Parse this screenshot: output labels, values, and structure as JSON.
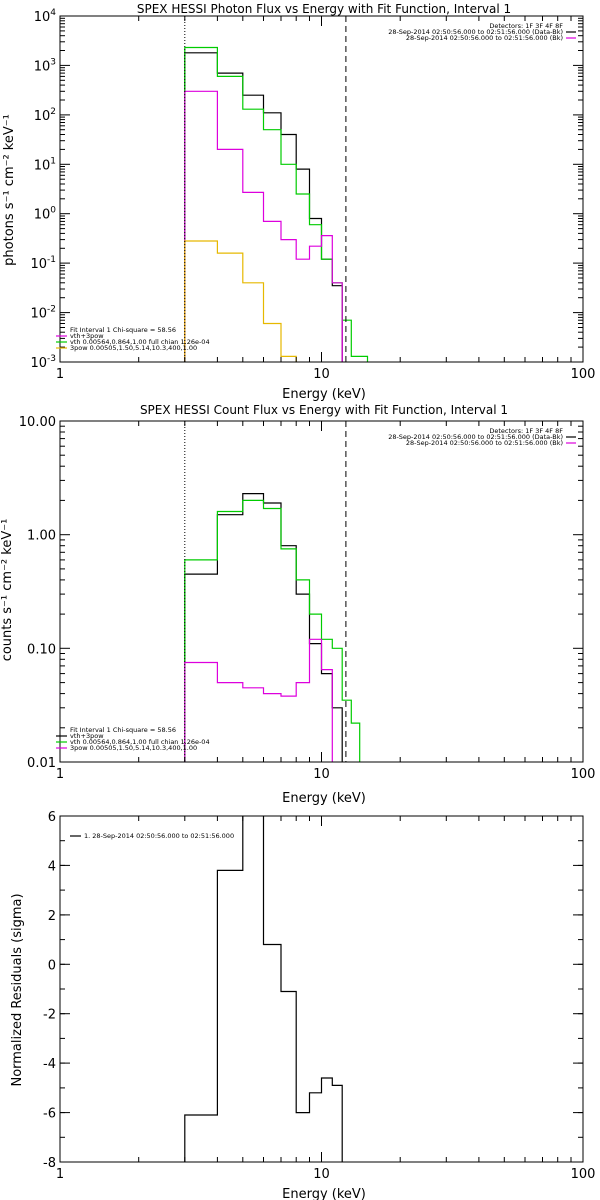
{
  "chart_data": [
    {
      "type": "line",
      "title": "SPEX HESSI Photon Flux vs Energy with Fit Function, Interval 1",
      "xlabel": "Energy (keV)",
      "ylabel": "photons s⁻¹ cm⁻² keV⁻¹",
      "x_scale": "log",
      "y_scale": "log",
      "xlim": [
        1,
        100
      ],
      "ylim": [
        0.001,
        10000
      ],
      "x_ticks": [
        {
          "v": 1,
          "label": "1"
        },
        {
          "v": 10,
          "label": "10"
        },
        {
          "v": 100,
          "label": "100"
        }
      ],
      "y_ticks": [
        {
          "v": 0.001,
          "base": "10",
          "exp": "-3"
        },
        {
          "v": 0.01,
          "base": "10",
          "exp": "-2"
        },
        {
          "v": 0.1,
          "base": "10",
          "exp": "-1"
        },
        {
          "v": 1,
          "base": "10",
          "exp": "0"
        },
        {
          "v": 10,
          "base": "10",
          "exp": "1"
        },
        {
          "v": 100,
          "base": "10",
          "exp": "2"
        },
        {
          "v": 1000,
          "base": "10",
          "exp": "3"
        },
        {
          "v": 10000,
          "base": "10",
          "exp": "4"
        }
      ],
      "vlines": [
        {
          "x": 3.0,
          "style": "dotted"
        },
        {
          "x": 12.4,
          "style": "dashed"
        }
      ],
      "legend_top_right": [
        {
          "text": "Detectors: 1F 3F 4F 8F",
          "color": ""
        },
        {
          "text": "28-Sep-2014 02:50:56.000 to 02:51:56.000 (Data-Bk)",
          "color": "#000000"
        },
        {
          "text": "28-Sep-2014 02:50:56.000 to 02:51:56.000 (Bk)",
          "color": "#dd00dd"
        }
      ],
      "legend_bottom_left": [
        {
          "text": "Fit Interval 1   Chi-square = 58.56",
          "color": ""
        },
        {
          "text": "vth+3pow",
          "color": "#dd00dd"
        },
        {
          "text": "vth 0.00564,0.864,1.00  full chian 1.26e-04",
          "color": "#00cc00"
        },
        {
          "text": "3pow 0.00505,1.50,5.14,10.3,400,1.00",
          "color": "#e6b800"
        }
      ],
      "series": [
        {
          "color": "#000000",
          "edges": [
            3.0,
            4.0,
            5.0,
            6.0,
            7.0,
            8.0,
            9.0,
            10.0,
            11.0,
            12.0
          ],
          "values": [
            1800,
            700,
            250,
            110,
            40,
            8,
            0.8,
            0.12,
            0.035,
            0.0006
          ]
        },
        {
          "color": "#00cc00",
          "edges": [
            3.0,
            4.0,
            5.0,
            6.0,
            7.0,
            8.0,
            9.0,
            10.0,
            11.0,
            12.0,
            13.0,
            15.0
          ],
          "values": [
            2300,
            600,
            130,
            50,
            10,
            2.5,
            0.6,
            0.12,
            0.04,
            0.007,
            0.0013,
            0.0006
          ]
        },
        {
          "color": "#dd00dd",
          "edges": [
            3.0,
            4.0,
            5.0,
            6.0,
            7.0,
            8.0,
            9.0,
            10.0,
            11.0,
            12.0
          ],
          "values": [
            300,
            20,
            2.7,
            0.7,
            0.3,
            0.12,
            0.22,
            0.36,
            0.04,
            0.0006
          ]
        },
        {
          "color": "#e6b800",
          "edges": [
            3.0,
            4.0,
            5.0,
            6.0,
            7.0,
            8.0
          ],
          "values": [
            0.28,
            0.16,
            0.04,
            0.006,
            0.0013,
            0.0006
          ]
        }
      ]
    },
    {
      "type": "line",
      "title": "SPEX HESSI Count Flux vs Energy with Fit Function, Interval 1",
      "xlabel": "Energy (keV)",
      "ylabel": "counts s⁻¹ cm⁻² keV⁻¹",
      "x_scale": "log",
      "y_scale": "log",
      "xlim": [
        1,
        100
      ],
      "ylim": [
        0.01,
        10
      ],
      "x_ticks": [
        {
          "v": 1,
          "label": "1"
        },
        {
          "v": 10,
          "label": "10"
        },
        {
          "v": 100,
          "label": "100"
        }
      ],
      "y_ticks": [
        {
          "v": 0.01,
          "label": "0.01"
        },
        {
          "v": 0.1,
          "label": "0.10"
        },
        {
          "v": 1,
          "label": "1.00"
        },
        {
          "v": 10,
          "label": "10.00"
        }
      ],
      "vlines": [
        {
          "x": 3.0,
          "style": "dotted"
        },
        {
          "x": 12.4,
          "style": "dashed"
        }
      ],
      "legend_top_right": [
        {
          "text": "Detectors: 1F 3F 4F 8F",
          "color": ""
        },
        {
          "text": "28-Sep-2014 02:50:56.000 to 02:51:56.000 (Data-Bk)",
          "color": "#000000"
        },
        {
          "text": "28-Sep-2014 02:50:56.000 to 02:51:56.000 (Bk)",
          "color": "#dd00dd"
        }
      ],
      "legend_bottom_left": [
        {
          "text": "Fit Interval 1   Chi-square = 58.56",
          "color": ""
        },
        {
          "text": "vth+3pow",
          "color": "#000000"
        },
        {
          "text": "vth 0.00564,0.864,1.00  full chian 1.26e-04",
          "color": "#00cc00"
        },
        {
          "text": "3pow 0.00505,1.50,5.14,10.3,400,1.00",
          "color": "#dd00dd"
        }
      ],
      "series": [
        {
          "color": "#000000",
          "edges": [
            3.0,
            4.0,
            5.0,
            6.0,
            7.0,
            8.0,
            9.0,
            10.0,
            11.0,
            12.0
          ],
          "values": [
            0.45,
            1.5,
            2.3,
            1.9,
            0.8,
            0.3,
            0.11,
            0.06,
            0.03,
            0.008
          ]
        },
        {
          "color": "#00cc00",
          "edges": [
            3.0,
            4.0,
            5.0,
            6.0,
            7.0,
            8.0,
            9.0,
            10.0,
            11.0,
            12.0,
            13.0,
            14.0,
            15.0
          ],
          "values": [
            0.6,
            1.6,
            2.0,
            1.7,
            0.75,
            0.4,
            0.2,
            0.12,
            0.1,
            0.035,
            0.022,
            0.009,
            0.009
          ]
        },
        {
          "color": "#dd00dd",
          "edges": [
            3.0,
            4.0,
            5.0,
            6.0,
            7.0,
            8.0,
            9.0,
            10.0,
            11.0,
            12.0
          ],
          "values": [
            0.075,
            0.05,
            0.045,
            0.04,
            0.038,
            0.05,
            0.12,
            0.065,
            0.008,
            0.008
          ]
        }
      ]
    },
    {
      "type": "line",
      "title": "",
      "xlabel": "Energy (keV)",
      "ylabel": "Normalized Residuals (sigma)",
      "x_scale": "log",
      "y_scale": "linear",
      "xlim": [
        1,
        100
      ],
      "ylim": [
        -8,
        6
      ],
      "x_ticks": [
        {
          "v": 1,
          "label": "1"
        },
        {
          "v": 10,
          "label": "10"
        },
        {
          "v": 100,
          "label": "100"
        }
      ],
      "y_ticks": [
        {
          "v": -8,
          "label": "-8"
        },
        {
          "v": -6,
          "label": "-6"
        },
        {
          "v": -4,
          "label": "-4"
        },
        {
          "v": -2,
          "label": "-2"
        },
        {
          "v": 0,
          "label": "0"
        },
        {
          "v": 2,
          "label": "2"
        },
        {
          "v": 4,
          "label": "4"
        },
        {
          "v": 6,
          "label": "6"
        }
      ],
      "vlines": [],
      "legend_top_left": [
        {
          "text": "1. 28-Sep-2014 02:50:56.000 to 02:51:56.000",
          "color": "#000000"
        }
      ],
      "series": [
        {
          "color": "#000000",
          "edges": [
            3.0,
            4.0,
            5.0,
            6.0,
            7.0,
            8.0,
            9.0,
            10.0,
            11.0,
            12.0
          ],
          "values": [
            -6.1,
            3.8,
            6.1,
            0.8,
            -1.1,
            -6.0,
            -5.2,
            -4.6,
            -4.9
          ]
        }
      ]
    }
  ]
}
